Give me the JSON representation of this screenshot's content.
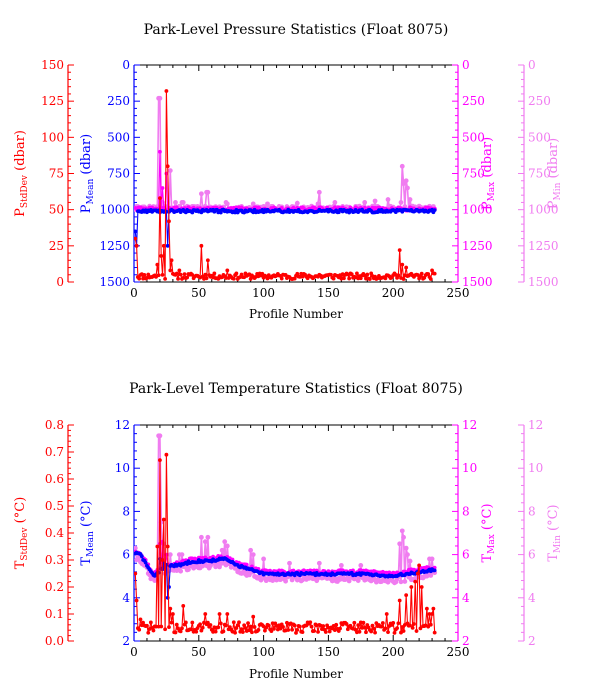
{
  "colors": {
    "stddev": "#ff0000",
    "mean": "#0000ff",
    "max": "#ff00ff",
    "min": "#f07cf0",
    "axis": "#000000"
  },
  "chart_data": [
    {
      "type": "line",
      "title": "Park-Level Pressure Statistics (Float 8075)",
      "xlabel": "Profile Number",
      "xlim": [
        0,
        250
      ],
      "xticks": [
        "0",
        "50",
        "100",
        "150",
        "200",
        "250"
      ],
      "axes": {
        "stddev": {
          "label_main": "P",
          "label_sub": "StdDev",
          "label_unit": " (dbar)",
          "lim": [
            0,
            150
          ],
          "ticks": [
            "0",
            "25",
            "50",
            "75",
            "100",
            "125",
            "150"
          ],
          "inverted": false
        },
        "mean": {
          "label_main": "P",
          "label_sub": "Mean",
          "label_unit": " (dbar)",
          "lim": [
            1500,
            0
          ],
          "ticks": [
            "0",
            "250",
            "500",
            "750",
            "1000",
            "1250",
            "1500"
          ],
          "inverted": true
        },
        "max": {
          "label_main": "P",
          "label_sub": "Max",
          "label_unit": " (dbar)",
          "lim": [
            1500,
            0
          ],
          "ticks": [
            "0",
            "250",
            "500",
            "750",
            "1000",
            "1250",
            "1500"
          ],
          "inverted": true
        },
        "min": {
          "label_main": "P",
          "label_sub": "Min",
          "label_unit": " (dbar)",
          "lim": [
            1500,
            0
          ],
          "ticks": [
            "0",
            "250",
            "500",
            "750",
            "1000",
            "1250",
            "1500"
          ],
          "inverted": true
        }
      },
      "series": {
        "stddev": {
          "base": 4,
          "amp": 2,
          "seed": 11,
          "spikes": [
            [
              1,
              30
            ],
            [
              2,
              25
            ],
            [
              18,
              12
            ],
            [
              20,
              58
            ],
            [
              21,
              18
            ],
            [
              23,
              25
            ],
            [
              25,
              132
            ],
            [
              26,
              80
            ],
            [
              27,
              42
            ],
            [
              28,
              8
            ],
            [
              29,
              15
            ],
            [
              35,
              8
            ],
            [
              52,
              25
            ],
            [
              57,
              15
            ],
            [
              72,
              8
            ],
            [
              143,
              5
            ],
            [
              205,
              22
            ],
            [
              207,
              12
            ],
            [
              210,
              10
            ],
            [
              230,
              8
            ]
          ]
        },
        "mean": {
          "base": 1010,
          "amp": 10,
          "seed": 23,
          "spikes": [
            [
              1,
              1150
            ],
            [
              2,
              1250
            ],
            [
              20,
              1020
            ],
            [
              24,
              1010
            ],
            [
              26,
              1250
            ]
          ]
        },
        "max": {
          "base": 995,
          "amp": 12,
          "seed": 37,
          "spikes": [
            [
              20,
              600
            ],
            [
              22,
              850
            ],
            [
              25,
              750
            ]
          ]
        },
        "min": {
          "base": 990,
          "amp": 15,
          "seed": 53,
          "spikes": [
            [
              1,
              1000
            ],
            [
              19,
              230
            ],
            [
              20,
              230
            ],
            [
              22,
              950
            ],
            [
              23,
              1000
            ],
            [
              28,
              730
            ],
            [
              32,
              950
            ],
            [
              37,
              950
            ],
            [
              38,
              950
            ],
            [
              52,
              890
            ],
            [
              56,
              880
            ],
            [
              57,
              880
            ],
            [
              71,
              950
            ],
            [
              72,
              960
            ],
            [
              92,
              960
            ],
            [
              103,
              960
            ],
            [
              126,
              955
            ],
            [
              142,
              960
            ],
            [
              143,
              880
            ],
            [
              155,
              950
            ],
            [
              178,
              950
            ],
            [
              186,
              940
            ],
            [
              196,
              930
            ],
            [
              206,
              950
            ],
            [
              207,
              700
            ],
            [
              208,
              820
            ],
            [
              210,
              800
            ],
            [
              211,
              850
            ],
            [
              213,
              930
            ]
          ]
        }
      }
    },
    {
      "type": "line",
      "title": "Park-Level Temperature Statistics (Float 8075)",
      "xlabel": "Profile Number",
      "xlim": [
        0,
        250
      ],
      "xticks": [
        "0",
        "50",
        "100",
        "150",
        "200",
        "250"
      ],
      "axes": {
        "stddev": {
          "label_main": "T",
          "label_sub": "StdDev",
          "label_unit": " (°C)",
          "lim": [
            0,
            0.8
          ],
          "ticks": [
            "0.0",
            "0.1",
            "0.2",
            "0.3",
            "0.4",
            "0.5",
            "0.6",
            "0.7",
            "0.8"
          ],
          "inverted": false
        },
        "mean": {
          "label_main": "T",
          "label_sub": "Mean",
          "label_unit": " (°C)",
          "lim": [
            2,
            12
          ],
          "ticks": [
            "2",
            "4",
            "6",
            "8",
            "10",
            "12"
          ],
          "inverted": false
        },
        "max": {
          "label_main": "T",
          "label_sub": "Max",
          "label_unit": " (°C)",
          "lim": [
            2,
            12
          ],
          "ticks": [
            "2",
            "4",
            "6",
            "8",
            "10",
            "12"
          ],
          "inverted": false
        },
        "min": {
          "label_main": "T",
          "label_sub": "Min",
          "label_unit": " (°C)",
          "lim": [
            2,
            12
          ],
          "ticks": [
            "2",
            "4",
            "6",
            "8",
            "10",
            "12"
          ],
          "inverted": false
        }
      },
      "series": {
        "stddev": {
          "base": 0.05,
          "amp": 0.02,
          "seed": 71,
          "spikes": [
            [
              1,
              0.25
            ],
            [
              2,
              0.15
            ],
            [
              5,
              0.08
            ],
            [
              18,
              0.35
            ],
            [
              20,
              0.67
            ],
            [
              22,
              0.3
            ],
            [
              23,
              0.45
            ],
            [
              25,
              0.69
            ],
            [
              26,
              0.35
            ],
            [
              28,
              0.12
            ],
            [
              30,
              0.1
            ],
            [
              38,
              0.13
            ],
            [
              55,
              0.1
            ],
            [
              66,
              0.1
            ],
            [
              72,
              0.1
            ],
            [
              92,
              0.09
            ],
            [
              195,
              0.1
            ],
            [
              205,
              0.15
            ],
            [
              210,
              0.17
            ],
            [
              214,
              0.2
            ],
            [
              217,
              0.22
            ],
            [
              219,
              0.25
            ],
            [
              220,
              0.28
            ],
            [
              222,
              0.2
            ],
            [
              226,
              0.12
            ],
            [
              228,
              0.1
            ],
            [
              230,
              0.1
            ],
            [
              231,
              0.12
            ]
          ]
        },
        "mean": {
          "profile": [
            [
              0,
              6.1
            ],
            [
              5,
              6.0
            ],
            [
              10,
              5.5
            ],
            [
              15,
              5.0
            ],
            [
              25,
              5.5
            ],
            [
              35,
              5.5
            ],
            [
              45,
              5.7
            ],
            [
              55,
              5.7
            ],
            [
              70,
              5.8
            ],
            [
              80,
              5.5
            ],
            [
              90,
              5.3
            ],
            [
              100,
              5.1
            ],
            [
              120,
              5.1
            ],
            [
              140,
              5.1
            ],
            [
              160,
              5.1
            ],
            [
              180,
              5.1
            ],
            [
              200,
              5.0
            ],
            [
              210,
              5.1
            ],
            [
              220,
              5.2
            ],
            [
              232,
              5.3
            ]
          ],
          "amp": 0.06,
          "seed": 83,
          "spikes": [
            [
              20,
              5.8
            ],
            [
              23,
              5.6
            ],
            [
              26,
              4.0
            ],
            [
              27,
              4.5
            ]
          ]
        },
        "max": {
          "profile": [
            [
              0,
              6.2
            ],
            [
              5,
              6.1
            ],
            [
              10,
              5.6
            ],
            [
              15,
              5.1
            ],
            [
              25,
              5.6
            ],
            [
              35,
              5.6
            ],
            [
              45,
              5.8
            ],
            [
              55,
              5.8
            ],
            [
              70,
              5.9
            ],
            [
              80,
              5.6
            ],
            [
              90,
              5.4
            ],
            [
              100,
              5.2
            ],
            [
              120,
              5.2
            ],
            [
              140,
              5.2
            ],
            [
              160,
              5.2
            ],
            [
              180,
              5.2
            ],
            [
              200,
              5.1
            ],
            [
              210,
              5.2
            ],
            [
              220,
              5.3
            ],
            [
              232,
              5.4
            ]
          ],
          "amp": 0.08,
          "seed": 97,
          "spikes": [
            [
              20,
              6.5
            ],
            [
              22,
              6.6
            ],
            [
              25,
              6.0
            ]
          ]
        },
        "min": {
          "profile": [
            [
              0,
              5.9
            ],
            [
              5,
              5.8
            ],
            [
              10,
              5.3
            ],
            [
              15,
              4.8
            ],
            [
              25,
              5.3
            ],
            [
              35,
              5.3
            ],
            [
              45,
              5.5
            ],
            [
              55,
              5.5
            ],
            [
              70,
              5.6
            ],
            [
              80,
              5.3
            ],
            [
              90,
              5.1
            ],
            [
              100,
              4.9
            ],
            [
              120,
              4.9
            ],
            [
              140,
              4.9
            ],
            [
              160,
              4.9
            ],
            [
              180,
              4.9
            ],
            [
              200,
              4.8
            ],
            [
              210,
              4.9
            ],
            [
              220,
              5.0
            ],
            [
              232,
              5.1
            ]
          ],
          "amp": 0.15,
          "seed": 109,
          "spikes": [
            [
              1,
              6.3
            ],
            [
              19,
              11.5
            ],
            [
              20,
              11.5
            ],
            [
              21,
              7.5
            ],
            [
              22,
              6.0
            ],
            [
              23,
              6.5
            ],
            [
              28,
              6.0
            ],
            [
              35,
              6.0
            ],
            [
              37,
              6.0
            ],
            [
              52,
              6.8
            ],
            [
              55,
              6.6
            ],
            [
              57,
              6.8
            ],
            [
              68,
              6.2
            ],
            [
              70,
              6.6
            ],
            [
              72,
              6.4
            ],
            [
              90,
              6.2
            ],
            [
              92,
              6.0
            ],
            [
              100,
              5.8
            ],
            [
              120,
              5.6
            ],
            [
              143,
              5.6
            ],
            [
              160,
              5.5
            ],
            [
              175,
              5.5
            ],
            [
              205,
              6.5
            ],
            [
              207,
              7.1
            ],
            [
              208,
              6.8
            ],
            [
              210,
              6.3
            ],
            [
              211,
              6.0
            ],
            [
              213,
              5.7
            ],
            [
              226,
              5.0
            ],
            [
              228,
              5.8
            ],
            [
              230,
              5.8
            ]
          ]
        }
      }
    }
  ]
}
